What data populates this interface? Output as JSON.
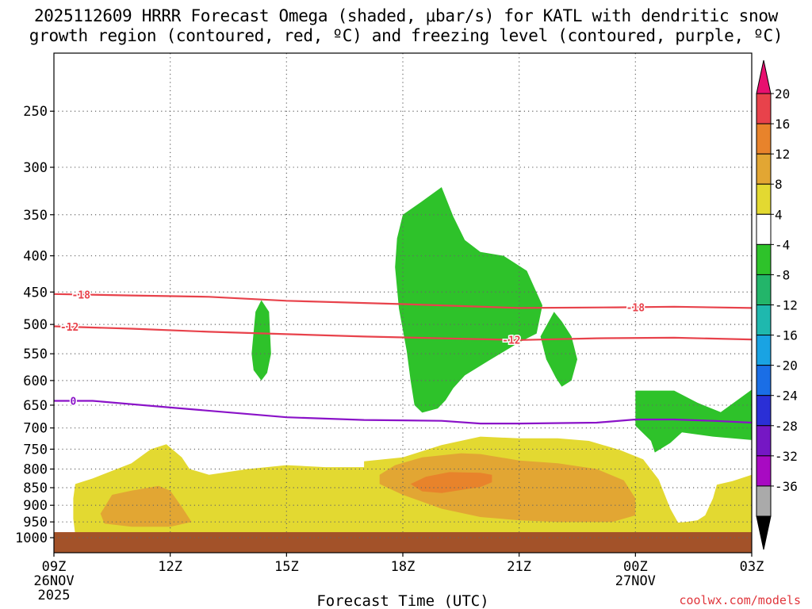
{
  "chart_data": {
    "type": "time-height cross-section",
    "title_line1": "2025112609 HRRR Forecast Omega (shaded, μbar/s) for KATL with dendritic snow",
    "title_line2": "growth region (contoured, red, ºC) and freezing level (contoured, purple, ºC)",
    "xlabel": "Forecast Time (UTC)",
    "x_range_hours": [
      0,
      18
    ],
    "x_ticks": [
      {
        "hour": 0,
        "label": "09Z",
        "sub1": "26NOV",
        "sub2": "2025"
      },
      {
        "hour": 3,
        "label": "12Z"
      },
      {
        "hour": 6,
        "label": "15Z"
      },
      {
        "hour": 9,
        "label": "18Z"
      },
      {
        "hour": 12,
        "label": "21Z"
      },
      {
        "hour": 15,
        "label": "00Z",
        "sub1": "27NOV"
      },
      {
        "hour": 18,
        "label": "03Z"
      }
    ],
    "y_axis": {
      "units": "hPa",
      "scale": "log-pressure",
      "range": [
        200,
        1050
      ],
      "ticks": [
        "250",
        "300",
        "350",
        "400",
        "450",
        "500",
        "550",
        "600",
        "650",
        "700",
        "750",
        "800",
        "850",
        "900",
        "950",
        "1000"
      ]
    },
    "colorbar": {
      "levels": [
        "20",
        "16",
        "12",
        "8",
        "4",
        "-4",
        "-8",
        "-12",
        "-16",
        "-20",
        "-24",
        "-28",
        "-32",
        "-36"
      ],
      "colors": [
        "#e8106f",
        "#e8424b",
        "#e8832b",
        "#e2a633",
        "#e3d931",
        "#ffffff",
        "#2ec22a",
        "#23b56a",
        "#1fb8ae",
        "#19a3e3",
        "#1a6ee6",
        "#2a2fd6",
        "#7517c4",
        "#a80ac2",
        "#aaaaaa",
        "#000000"
      ]
    },
    "contours": [
      {
        "name": "dendritic -18",
        "label": "-18",
        "color": "#e8424b",
        "points": [
          [
            0,
            453
          ],
          [
            2,
            455
          ],
          [
            4,
            457
          ],
          [
            6,
            463
          ],
          [
            9,
            468
          ],
          [
            12,
            474
          ],
          [
            14.5,
            473
          ],
          [
            16,
            472
          ],
          [
            18,
            474
          ]
        ],
        "label_hours": [
          0.7,
          15
        ]
      },
      {
        "name": "dendritic -12",
        "label": "-12",
        "color": "#e8424b",
        "points": [
          [
            0,
            503
          ],
          [
            2,
            507
          ],
          [
            4,
            512
          ],
          [
            6,
            516
          ],
          [
            8,
            520
          ],
          [
            10,
            523
          ],
          [
            12,
            526
          ],
          [
            14,
            523
          ],
          [
            16,
            522
          ],
          [
            18,
            525
          ]
        ],
        "label_hours": [
          0.4,
          11.8
        ]
      },
      {
        "name": "freezing level 0",
        "label": "0",
        "color": "#8a12c8",
        "points": [
          [
            0,
            641
          ],
          [
            1,
            641
          ],
          [
            3,
            655
          ],
          [
            6,
            676
          ],
          [
            8,
            682
          ],
          [
            10,
            684
          ],
          [
            11,
            690
          ],
          [
            12,
            690
          ],
          [
            14,
            688
          ],
          [
            15,
            681
          ],
          [
            16,
            681
          ],
          [
            17,
            684
          ],
          [
            18,
            688
          ]
        ],
        "label_hours": [
          0.5
        ]
      }
    ],
    "shaded_regions": [
      {
        "name": "ascent a",
        "color": "#2ec22a",
        "points": [
          [
            5.1,
            550
          ],
          [
            5.2,
            480
          ],
          [
            5.35,
            462
          ],
          [
            5.55,
            480
          ],
          [
            5.6,
            550
          ],
          [
            5.5,
            585
          ],
          [
            5.35,
            600
          ],
          [
            5.15,
            580
          ]
        ]
      },
      {
        "name": "ascent b",
        "color": "#2ec22a",
        "points": [
          [
            8.8,
            415
          ],
          [
            8.85,
            378
          ],
          [
            9,
            350
          ],
          [
            9.5,
            335
          ],
          [
            10,
            320
          ],
          [
            10.3,
            352
          ],
          [
            10.6,
            380
          ],
          [
            11,
            395
          ],
          [
            11.6,
            400
          ],
          [
            12.2,
            420
          ],
          [
            12.6,
            470
          ],
          [
            12.45,
            515
          ],
          [
            12,
            530
          ],
          [
            11.2,
            563
          ],
          [
            10.6,
            590
          ],
          [
            10.3,
            615
          ],
          [
            10.1,
            640
          ],
          [
            9.9,
            657
          ],
          [
            9.5,
            666
          ],
          [
            9.3,
            650
          ],
          [
            9.2,
            600
          ],
          [
            9.1,
            545
          ],
          [
            8.9,
            475
          ]
        ]
      },
      {
        "name": "ascent c",
        "color": "#2ec22a",
        "points": [
          [
            12.55,
            520
          ],
          [
            12.9,
            480
          ],
          [
            13.1,
            495
          ],
          [
            13.35,
            520
          ],
          [
            13.5,
            560
          ],
          [
            13.35,
            600
          ],
          [
            13.1,
            612
          ],
          [
            12.95,
            595
          ],
          [
            12.7,
            560
          ]
        ]
      },
      {
        "name": "ascent d",
        "color": "#2ec22a",
        "points": [
          [
            15,
            620
          ],
          [
            16,
            620
          ],
          [
            16.6,
            645
          ],
          [
            17.2,
            665
          ],
          [
            18,
            618
          ],
          [
            18,
            728
          ],
          [
            17,
            720
          ],
          [
            16.2,
            710
          ],
          [
            15.9,
            735
          ],
          [
            15.5,
            758
          ],
          [
            15.4,
            730
          ],
          [
            15,
            695
          ]
        ]
      },
      {
        "name": "descent 4-8",
        "color": "#e3d931",
        "points": [
          [
            0.55,
            840
          ],
          [
            1,
            825
          ],
          [
            2,
            785
          ],
          [
            2.5,
            750
          ],
          [
            2.9,
            738
          ],
          [
            3.3,
            770
          ],
          [
            3.5,
            800
          ],
          [
            4,
            815
          ],
          [
            5,
            800
          ],
          [
            6,
            790
          ],
          [
            7,
            795
          ],
          [
            8,
            795
          ],
          [
            8,
            780
          ],
          [
            9,
            770
          ],
          [
            10,
            740
          ],
          [
            11,
            720
          ],
          [
            12,
            724
          ],
          [
            13,
            724
          ],
          [
            13.8,
            730
          ],
          [
            14.6,
            752
          ],
          [
            15.2,
            775
          ],
          [
            15.6,
            828
          ],
          [
            15.9,
            910
          ],
          [
            16.1,
            952
          ],
          [
            16.3,
            950
          ],
          [
            16.6,
            945
          ],
          [
            16.8,
            930
          ],
          [
            17,
            880
          ],
          [
            17.1,
            842
          ],
          [
            17.5,
            832
          ],
          [
            18,
            815
          ],
          [
            18,
            990
          ],
          [
            0.55,
            990
          ],
          [
            0.5,
            940
          ],
          [
            0.5,
            880
          ]
        ]
      },
      {
        "name": "descent 8-12 a",
        "color": "#e2a633",
        "points": [
          [
            1.2,
            925
          ],
          [
            1.5,
            870
          ],
          [
            2,
            858
          ],
          [
            2.7,
            845
          ],
          [
            3,
            858
          ],
          [
            3.3,
            905
          ],
          [
            3.55,
            950
          ],
          [
            3,
            965
          ],
          [
            2,
            965
          ],
          [
            1.3,
            955
          ]
        ]
      },
      {
        "name": "descent 8-12 b",
        "color": "#e2a633",
        "points": [
          [
            8.4,
            815
          ],
          [
            8.8,
            790
          ],
          [
            9.5,
            770
          ],
          [
            10.5,
            760
          ],
          [
            11,
            762
          ],
          [
            12,
            778
          ],
          [
            13,
            785
          ],
          [
            14,
            800
          ],
          [
            14.7,
            830
          ],
          [
            15,
            880
          ],
          [
            15,
            930
          ],
          [
            14.4,
            950
          ],
          [
            13,
            950
          ],
          [
            12,
            945
          ],
          [
            11,
            935
          ],
          [
            10,
            910
          ],
          [
            9,
            870
          ],
          [
            8.4,
            840
          ]
        ]
      },
      {
        "name": "descent 12-16",
        "color": "#e8832b",
        "points": [
          [
            9.2,
            840
          ],
          [
            9.6,
            820
          ],
          [
            10.2,
            808
          ],
          [
            11,
            810
          ],
          [
            11.3,
            815
          ],
          [
            11.3,
            835
          ],
          [
            11,
            848
          ],
          [
            10,
            865
          ],
          [
            9.5,
            860
          ]
        ]
      }
    ],
    "ground": {
      "color": "#a35229",
      "from_hPa": 1000,
      "label": "terrain"
    },
    "credit": "coolwx.com/models"
  }
}
